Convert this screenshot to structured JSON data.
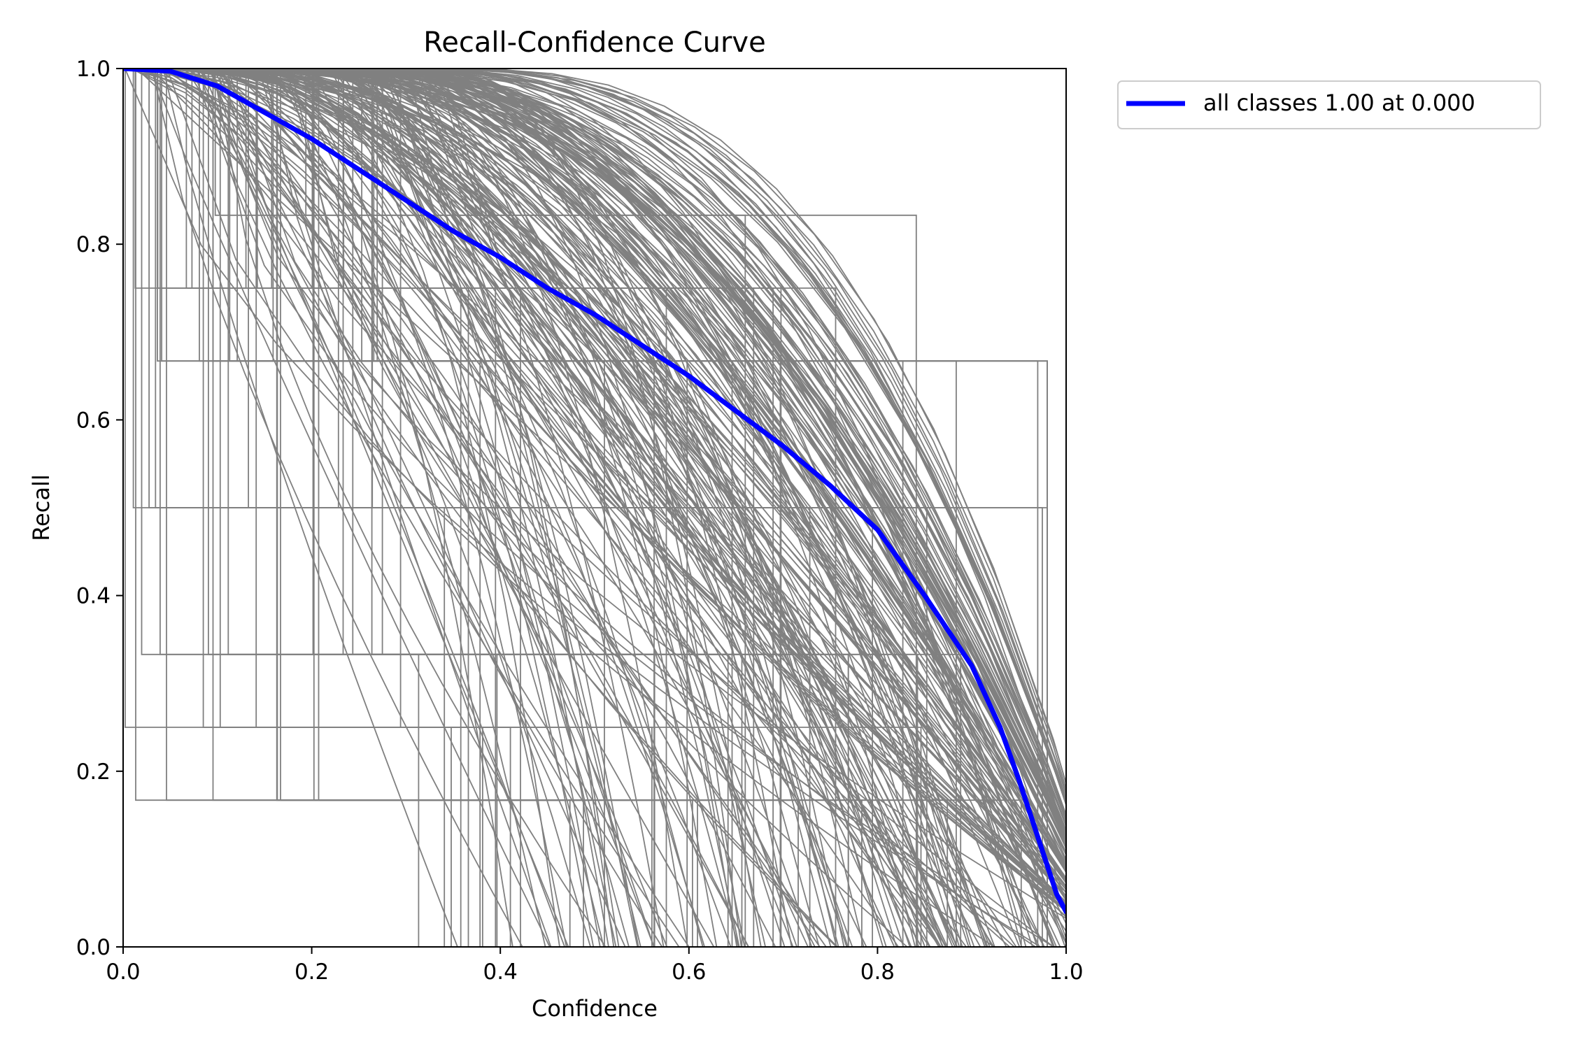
{
  "chart_data": {
    "type": "line",
    "title": "Recall-Confidence Curve",
    "xlabel": "Confidence",
    "ylabel": "Recall",
    "xlim": [
      0,
      1
    ],
    "ylim": [
      0,
      1
    ],
    "xticks": [
      "0.0",
      "0.2",
      "0.4",
      "0.6",
      "0.8",
      "1.0"
    ],
    "yticks": [
      "0.0",
      "0.2",
      "0.4",
      "0.6",
      "0.8",
      "1.0"
    ],
    "grid": false,
    "legend_position": "outside-upper-right",
    "series": [
      {
        "name": "all classes 1.00 at 0.000",
        "color": "#0000ff",
        "x": [
          0.0,
          0.05,
          0.1,
          0.15,
          0.2,
          0.25,
          0.3,
          0.35,
          0.4,
          0.45,
          0.5,
          0.55,
          0.6,
          0.65,
          0.7,
          0.75,
          0.8,
          0.85,
          0.9,
          0.93,
          0.95,
          0.97,
          0.99,
          1.0
        ],
        "y": [
          1.0,
          0.997,
          0.98,
          0.95,
          0.92,
          0.885,
          0.85,
          0.815,
          0.785,
          0.75,
          0.72,
          0.685,
          0.65,
          0.61,
          0.57,
          0.525,
          0.475,
          0.4,
          0.32,
          0.25,
          0.19,
          0.125,
          0.06,
          0.04
        ]
      }
    ],
    "background_series_color": "#808080",
    "background_series_description_count": 300
  }
}
